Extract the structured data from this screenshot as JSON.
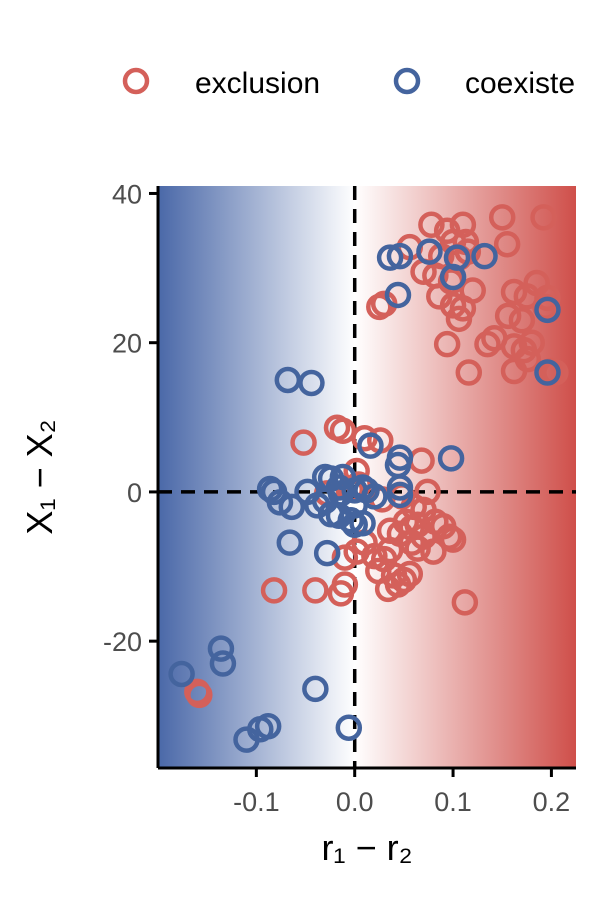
{
  "chart_data": {
    "type": "scatter",
    "title": "",
    "xlabel": "r₁ − r₂",
    "ylabel": "X₁ − X₂",
    "xlim": [
      -0.2,
      0.225
    ],
    "ylim": [
      -37,
      41
    ],
    "x_ticks": [
      -0.1,
      0.0,
      0.1,
      0.2
    ],
    "x_tick_labels": [
      "-0.1",
      "0.0",
      "0.1",
      "0.2"
    ],
    "y_ticks": [
      -20,
      0,
      20,
      40
    ],
    "y_tick_labels": [
      "-20",
      "0",
      "20",
      "40"
    ],
    "grid": false,
    "reference_lines": {
      "x": 0,
      "y": 0,
      "style": "dashed"
    },
    "background_gradient": {
      "low_color": "#4a68a8",
      "mid_color": "#ffffff",
      "high_color": "#cf4f4a"
    },
    "legend": {
      "placement": "top",
      "entries": [
        "exclusion",
        "coexiste"
      ]
    },
    "series": [
      {
        "name": "exclusion",
        "color": "#d4605a",
        "points": [
          [
            0.078,
            35.8
          ],
          [
            0.094,
            35.0
          ],
          [
            0.11,
            35.8
          ],
          [
            0.15,
            36.8
          ],
          [
            0.192,
            36.8
          ],
          [
            0.1,
            33.5
          ],
          [
            0.113,
            33.5
          ],
          [
            0.155,
            33.2
          ],
          [
            0.056,
            32.8
          ],
          [
            0.088,
            31.6
          ],
          [
            0.106,
            31.4
          ],
          [
            0.115,
            32.2
          ],
          [
            0.07,
            29.5
          ],
          [
            0.082,
            29.0
          ],
          [
            0.098,
            28.2
          ],
          [
            0.12,
            27.0
          ],
          [
            0.086,
            26.2
          ],
          [
            0.162,
            26.8
          ],
          [
            0.175,
            26.2
          ],
          [
            0.185,
            28.0
          ],
          [
            0.196,
            26.0
          ],
          [
            0.025,
            24.8
          ],
          [
            0.03,
            25.2
          ],
          [
            0.1,
            25.0
          ],
          [
            0.11,
            24.6
          ],
          [
            0.106,
            23.2
          ],
          [
            0.156,
            23.6
          ],
          [
            0.17,
            23.0
          ],
          [
            0.194,
            24.8
          ],
          [
            0.142,
            20.6
          ],
          [
            0.135,
            19.8
          ],
          [
            0.094,
            19.8
          ],
          [
            0.162,
            19.5
          ],
          [
            0.172,
            19.0
          ],
          [
            0.176,
            17.8
          ],
          [
            0.18,
            20.0
          ],
          [
            0.2,
            16.2
          ],
          [
            0.204,
            16.0
          ],
          [
            0.116,
            16.0
          ],
          [
            0.162,
            16.2
          ],
          [
            -0.052,
            6.6
          ],
          [
            -0.018,
            8.6
          ],
          [
            -0.012,
            8.2
          ],
          [
            0.01,
            7.2
          ],
          [
            0.026,
            6.9
          ],
          [
            0.002,
            2.8
          ],
          [
            0.004,
            1.0
          ],
          [
            -0.004,
            0.3
          ],
          [
            -0.028,
            -0.2
          ],
          [
            0.074,
            0.0
          ],
          [
            0.068,
            4.2
          ],
          [
            0.028,
            -1.0
          ],
          [
            0.048,
            -0.6
          ],
          [
            0.06,
            -2.0
          ],
          [
            0.07,
            -2.4
          ],
          [
            0.052,
            -4.0
          ],
          [
            0.058,
            -4.8
          ],
          [
            0.064,
            -4.4
          ],
          [
            0.082,
            -4.0
          ],
          [
            0.09,
            -4.6
          ],
          [
            0.036,
            -5.2
          ],
          [
            0.046,
            -5.6
          ],
          [
            0.058,
            -6.8
          ],
          [
            0.07,
            -6.0
          ],
          [
            0.1,
            -6.4
          ],
          [
            0.096,
            -6.0
          ],
          [
            0.01,
            -6.8
          ],
          [
            0.002,
            -8.0
          ],
          [
            0.02,
            -8.6
          ],
          [
            0.03,
            -9.0
          ],
          [
            0.036,
            -7.8
          ],
          [
            0.064,
            -7.6
          ],
          [
            0.08,
            -8.0
          ],
          [
            -0.01,
            -8.8
          ],
          [
            0.024,
            -10.6
          ],
          [
            0.04,
            -11.2
          ],
          [
            0.05,
            -11.8
          ],
          [
            0.056,
            -11.0
          ],
          [
            0.034,
            -13.0
          ],
          [
            0.044,
            -12.4
          ],
          [
            -0.082,
            -13.2
          ],
          [
            -0.04,
            -13.2
          ],
          [
            -0.014,
            -13.6
          ],
          [
            -0.01,
            -12.4
          ],
          [
            0.112,
            -14.8
          ],
          [
            -0.16,
            -26.8
          ],
          [
            -0.158,
            -27.2
          ]
        ]
      },
      {
        "name": "coexiste",
        "color": "#44649e",
        "points": [
          [
            0.036,
            31.4
          ],
          [
            0.046,
            31.6
          ],
          [
            0.104,
            31.4
          ],
          [
            0.132,
            31.6
          ],
          [
            0.076,
            32.2
          ],
          [
            0.1,
            28.8
          ],
          [
            0.044,
            26.4
          ],
          [
            0.196,
            24.4
          ],
          [
            0.196,
            16.0
          ],
          [
            -0.068,
            15.0
          ],
          [
            -0.044,
            14.6
          ],
          [
            0.016,
            6.2
          ],
          [
            0.046,
            4.6
          ],
          [
            0.044,
            3.6
          ],
          [
            0.098,
            4.5
          ],
          [
            -0.03,
            2.0
          ],
          [
            -0.024,
            1.8
          ],
          [
            -0.012,
            2.0
          ],
          [
            -0.016,
            0.6
          ],
          [
            -0.014,
            -0.2
          ],
          [
            0.0,
            0.2
          ],
          [
            0.008,
            0.6
          ],
          [
            0.012,
            0.2
          ],
          [
            0.02,
            -0.6
          ],
          [
            0.046,
            0.6
          ],
          [
            0.046,
            -0.4
          ],
          [
            -0.086,
            0.4
          ],
          [
            -0.082,
            0.0
          ],
          [
            -0.076,
            -1.4
          ],
          [
            -0.064,
            -2.0
          ],
          [
            -0.048,
            0.0
          ],
          [
            -0.038,
            -1.8
          ],
          [
            -0.03,
            -1.2
          ],
          [
            -0.024,
            -3.0
          ],
          [
            -0.016,
            -3.2
          ],
          [
            0.0,
            -1.8
          ],
          [
            -0.004,
            -3.8
          ],
          [
            0.0,
            -4.4
          ],
          [
            0.008,
            -4.2
          ],
          [
            -0.066,
            -6.8
          ],
          [
            -0.028,
            -8.2
          ],
          [
            -0.136,
            -21.0
          ],
          [
            -0.134,
            -23.0
          ],
          [
            -0.176,
            -24.4
          ],
          [
            -0.04,
            -26.4
          ],
          [
            -0.11,
            -33.2
          ],
          [
            -0.096,
            -31.8
          ],
          [
            -0.088,
            -31.4
          ],
          [
            -0.006,
            -31.6
          ]
        ]
      }
    ]
  }
}
